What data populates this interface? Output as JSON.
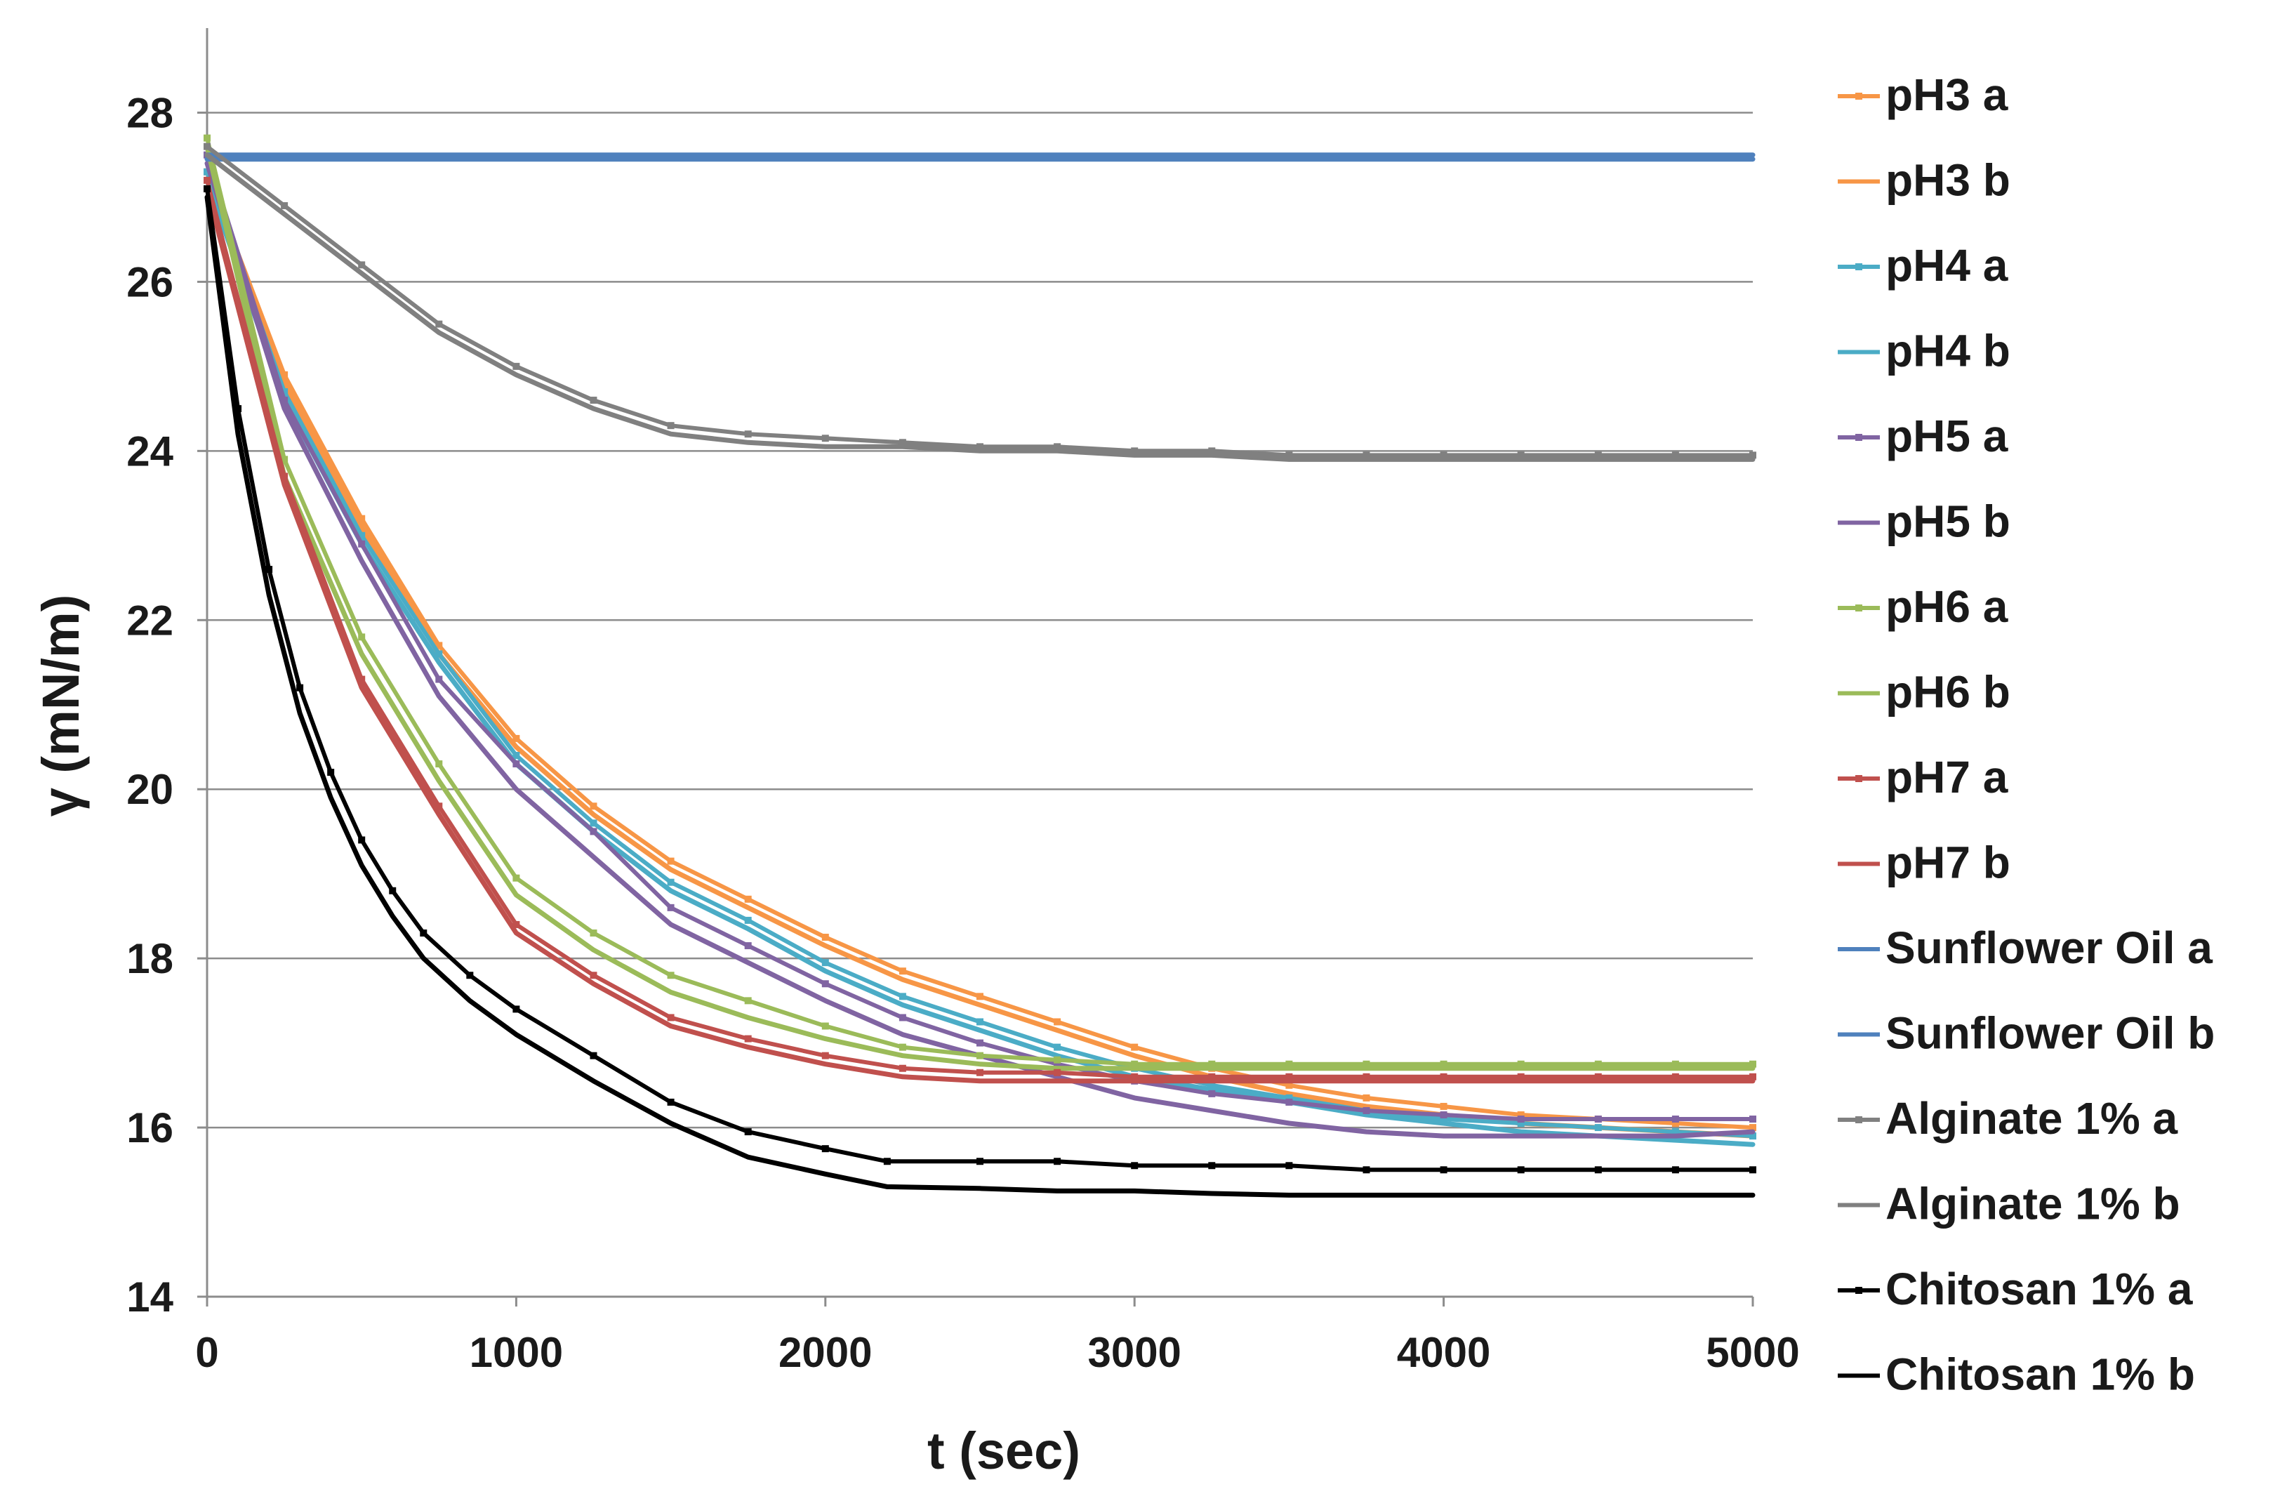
{
  "chart_data": {
    "type": "line",
    "title": "",
    "xlabel": "t (sec)",
    "ylabel": "γ (mN/m)",
    "xlim": [
      0,
      5000
    ],
    "ylim": [
      14,
      29
    ],
    "xticks": [
      0,
      1000,
      2000,
      3000,
      4000,
      5000
    ],
    "yticks": [
      14,
      16,
      18,
      20,
      22,
      24,
      26,
      28
    ],
    "xtick_labels": [
      "0",
      "1000",
      "2000",
      "3000",
      "4000",
      "5000"
    ],
    "ytick_labels": [
      "14",
      "16",
      "18",
      "20",
      "22",
      "24",
      "26",
      "28"
    ],
    "grid": "horizontal",
    "legend_position": "right",
    "series": [
      {
        "name": "pH3 a",
        "color": "#f79646",
        "marker": true,
        "x": [
          0,
          250,
          500,
          750,
          1000,
          1250,
          1500,
          1750,
          2000,
          2250,
          2500,
          2750,
          3000,
          3250,
          3500,
          3750,
          4000,
          4250,
          4500,
          4750,
          5000
        ],
        "y": [
          27.3,
          24.9,
          23.2,
          21.7,
          20.6,
          19.8,
          19.15,
          18.7,
          18.25,
          17.85,
          17.55,
          17.25,
          16.95,
          16.7,
          16.5,
          16.35,
          16.25,
          16.15,
          16.1,
          16.05,
          16.0
        ]
      },
      {
        "name": "pH3 b",
        "color": "#f79646",
        "marker": false,
        "x": [
          0,
          250,
          500,
          750,
          1000,
          1250,
          1500,
          1750,
          2000,
          2250,
          2500,
          2750,
          3000,
          3250,
          3500,
          3750,
          4000,
          4250,
          4500,
          4750,
          5000
        ],
        "y": [
          27.2,
          24.8,
          23.1,
          21.6,
          20.5,
          19.7,
          19.05,
          18.6,
          18.15,
          17.75,
          17.45,
          17.15,
          16.85,
          16.6,
          16.4,
          16.25,
          16.15,
          16.05,
          16.0,
          15.95,
          15.9
        ]
      },
      {
        "name": "pH4 a",
        "color": "#4bacc6",
        "marker": true,
        "x": [
          0,
          250,
          500,
          750,
          1000,
          1250,
          1500,
          1750,
          2000,
          2250,
          2500,
          2750,
          3000,
          3250,
          3500,
          3750,
          4000,
          4250,
          4500,
          4750,
          5000
        ],
        "y": [
          27.3,
          24.7,
          23.0,
          21.6,
          20.4,
          19.6,
          18.9,
          18.45,
          17.95,
          17.55,
          17.25,
          16.95,
          16.7,
          16.5,
          16.35,
          16.2,
          16.1,
          16.05,
          16.0,
          15.95,
          15.9
        ]
      },
      {
        "name": "pH4 b",
        "color": "#4bacc6",
        "marker": false,
        "x": [
          0,
          250,
          500,
          750,
          1000,
          1250,
          1500,
          1750,
          2000,
          2250,
          2500,
          2750,
          3000,
          3250,
          3500,
          3750,
          4000,
          4250,
          4500,
          4750,
          5000
        ],
        "y": [
          27.2,
          24.6,
          22.9,
          21.5,
          20.3,
          19.5,
          18.8,
          18.35,
          17.85,
          17.45,
          17.15,
          16.85,
          16.6,
          16.45,
          16.3,
          16.15,
          16.05,
          15.95,
          15.9,
          15.85,
          15.8
        ]
      },
      {
        "name": "pH5 a",
        "color": "#8064a2",
        "marker": true,
        "x": [
          0,
          250,
          500,
          750,
          1000,
          1250,
          1500,
          1750,
          2000,
          2250,
          2500,
          2750,
          3000,
          3250,
          3500,
          3750,
          4000,
          4250,
          4500,
          4750,
          5000
        ],
        "y": [
          27.5,
          24.6,
          22.9,
          21.3,
          20.3,
          19.5,
          18.6,
          18.15,
          17.7,
          17.3,
          17.0,
          16.75,
          16.55,
          16.4,
          16.3,
          16.2,
          16.15,
          16.1,
          16.1,
          16.1,
          16.1
        ]
      },
      {
        "name": "pH5 b",
        "color": "#8064a2",
        "marker": false,
        "x": [
          0,
          250,
          500,
          750,
          1000,
          1250,
          1500,
          1750,
          2000,
          2250,
          2500,
          2750,
          3000,
          3250,
          3500,
          3750,
          4000,
          4250,
          4500,
          4750,
          5000
        ],
        "y": [
          27.4,
          24.5,
          22.7,
          21.1,
          20.0,
          19.2,
          18.4,
          17.95,
          17.5,
          17.1,
          16.85,
          16.6,
          16.35,
          16.2,
          16.05,
          15.95,
          15.9,
          15.9,
          15.9,
          15.9,
          15.95
        ]
      },
      {
        "name": "pH6 a",
        "color": "#9bbb59",
        "marker": true,
        "x": [
          0,
          250,
          500,
          750,
          1000,
          1250,
          1500,
          1750,
          2000,
          2250,
          2500,
          2750,
          3000,
          3250,
          3500,
          3750,
          4000,
          4250,
          4500,
          4750,
          5000
        ],
        "y": [
          27.7,
          23.9,
          21.8,
          20.3,
          18.95,
          18.3,
          17.8,
          17.5,
          17.2,
          16.95,
          16.85,
          16.8,
          16.75,
          16.75,
          16.75,
          16.75,
          16.75,
          16.75,
          16.75,
          16.75,
          16.75
        ]
      },
      {
        "name": "pH6 b",
        "color": "#9bbb59",
        "marker": false,
        "x": [
          0,
          250,
          500,
          750,
          1000,
          1250,
          1500,
          1750,
          2000,
          2250,
          2500,
          2750,
          3000,
          3250,
          3500,
          3750,
          4000,
          4250,
          4500,
          4750,
          5000
        ],
        "y": [
          27.6,
          23.7,
          21.6,
          20.1,
          18.75,
          18.1,
          17.6,
          17.3,
          17.05,
          16.85,
          16.75,
          16.7,
          16.7,
          16.7,
          16.7,
          16.7,
          16.7,
          16.7,
          16.7,
          16.7,
          16.7
        ]
      },
      {
        "name": "pH7 a",
        "color": "#c0504d",
        "marker": true,
        "x": [
          0,
          250,
          500,
          750,
          1000,
          1250,
          1500,
          1750,
          2000,
          2250,
          2500,
          2750,
          3000,
          3250,
          3500,
          3750,
          4000,
          4250,
          4500,
          4750,
          5000
        ],
        "y": [
          27.2,
          23.7,
          21.3,
          19.8,
          18.4,
          17.8,
          17.3,
          17.05,
          16.85,
          16.7,
          16.65,
          16.65,
          16.6,
          16.6,
          16.6,
          16.6,
          16.6,
          16.6,
          16.6,
          16.6,
          16.6
        ]
      },
      {
        "name": "pH7 b",
        "color": "#c0504d",
        "marker": false,
        "x": [
          0,
          250,
          500,
          750,
          1000,
          1250,
          1500,
          1750,
          2000,
          2250,
          2500,
          2750,
          3000,
          3250,
          3500,
          3750,
          4000,
          4250,
          4500,
          4750,
          5000
        ],
        "y": [
          27.1,
          23.6,
          21.2,
          19.7,
          18.3,
          17.7,
          17.2,
          16.95,
          16.75,
          16.6,
          16.55,
          16.55,
          16.55,
          16.55,
          16.55,
          16.55,
          16.55,
          16.55,
          16.55,
          16.55,
          16.55
        ]
      },
      {
        "name": "Sunflower Oil a",
        "color": "#4f81bd",
        "marker": false,
        "x": [
          0,
          250,
          500,
          750,
          1000,
          1250,
          1500,
          1750,
          2000,
          2250,
          2500,
          2750,
          3000,
          3250,
          3500,
          3750,
          4000,
          4250,
          4500,
          4750,
          5000
        ],
        "y": [
          27.5,
          27.5,
          27.5,
          27.5,
          27.5,
          27.5,
          27.5,
          27.5,
          27.5,
          27.5,
          27.5,
          27.5,
          27.5,
          27.5,
          27.5,
          27.5,
          27.5,
          27.5,
          27.5,
          27.5,
          27.5
        ]
      },
      {
        "name": "Sunflower Oil b",
        "color": "#4f81bd",
        "marker": false,
        "x": [
          0,
          250,
          500,
          750,
          1000,
          1250,
          1500,
          1750,
          2000,
          2250,
          2500,
          2750,
          3000,
          3250,
          3500,
          3750,
          4000,
          4250,
          4500,
          4750,
          5000
        ],
        "y": [
          27.45,
          27.45,
          27.45,
          27.45,
          27.45,
          27.45,
          27.45,
          27.45,
          27.45,
          27.45,
          27.45,
          27.45,
          27.45,
          27.45,
          27.45,
          27.45,
          27.45,
          27.45,
          27.45,
          27.45,
          27.45
        ]
      },
      {
        "name": "Alginate 1% a",
        "color": "#808080",
        "marker": true,
        "x": [
          0,
          250,
          500,
          750,
          1000,
          1250,
          1500,
          1750,
          2000,
          2250,
          2500,
          2750,
          3000,
          3250,
          3500,
          3750,
          4000,
          4250,
          4500,
          4750,
          5000
        ],
        "y": [
          27.6,
          26.9,
          26.2,
          25.5,
          25.0,
          24.6,
          24.3,
          24.2,
          24.15,
          24.1,
          24.05,
          24.05,
          24.0,
          24.0,
          23.95,
          23.95,
          23.95,
          23.95,
          23.95,
          23.95,
          23.95
        ]
      },
      {
        "name": "Alginate 1% b",
        "color": "#808080",
        "marker": false,
        "x": [
          0,
          250,
          500,
          750,
          1000,
          1250,
          1500,
          1750,
          2000,
          2250,
          2500,
          2750,
          3000,
          3250,
          3500,
          3750,
          4000,
          4250,
          4500,
          4750,
          5000
        ],
        "y": [
          27.5,
          26.8,
          26.1,
          25.4,
          24.9,
          24.5,
          24.2,
          24.1,
          24.05,
          24.05,
          24.0,
          24.0,
          23.95,
          23.95,
          23.9,
          23.9,
          23.9,
          23.9,
          23.9,
          23.9,
          23.9
        ]
      },
      {
        "name": "Chitosan 1% a",
        "color": "#000000",
        "marker": true,
        "x": [
          0,
          100,
          200,
          300,
          400,
          500,
          600,
          700,
          850,
          1000,
          1250,
          1500,
          1750,
          2000,
          2200,
          2500,
          2750,
          3000,
          3250,
          3500,
          3750,
          4000,
          4250,
          4500,
          4750,
          5000
        ],
        "y": [
          27.1,
          24.5,
          22.6,
          21.2,
          20.2,
          19.4,
          18.8,
          18.3,
          17.8,
          17.4,
          16.85,
          16.3,
          15.95,
          15.75,
          15.6,
          15.6,
          15.6,
          15.55,
          15.55,
          15.55,
          15.5,
          15.5,
          15.5,
          15.5,
          15.5,
          15.5
        ]
      },
      {
        "name": "Chitosan 1% b",
        "color": "#000000",
        "marker": false,
        "x": [
          0,
          100,
          200,
          300,
          400,
          500,
          600,
          700,
          850,
          1000,
          1250,
          1500,
          1750,
          2000,
          2200,
          2500,
          2750,
          3000,
          3250,
          3500,
          3750,
          4000,
          4250,
          4500,
          4750,
          5000
        ],
        "y": [
          27.0,
          24.2,
          22.3,
          20.9,
          19.9,
          19.1,
          18.5,
          18.0,
          17.5,
          17.1,
          16.55,
          16.05,
          15.65,
          15.45,
          15.3,
          15.28,
          15.25,
          15.25,
          15.22,
          15.2,
          15.2,
          15.2,
          15.2,
          15.2,
          15.2,
          15.2
        ]
      }
    ]
  }
}
